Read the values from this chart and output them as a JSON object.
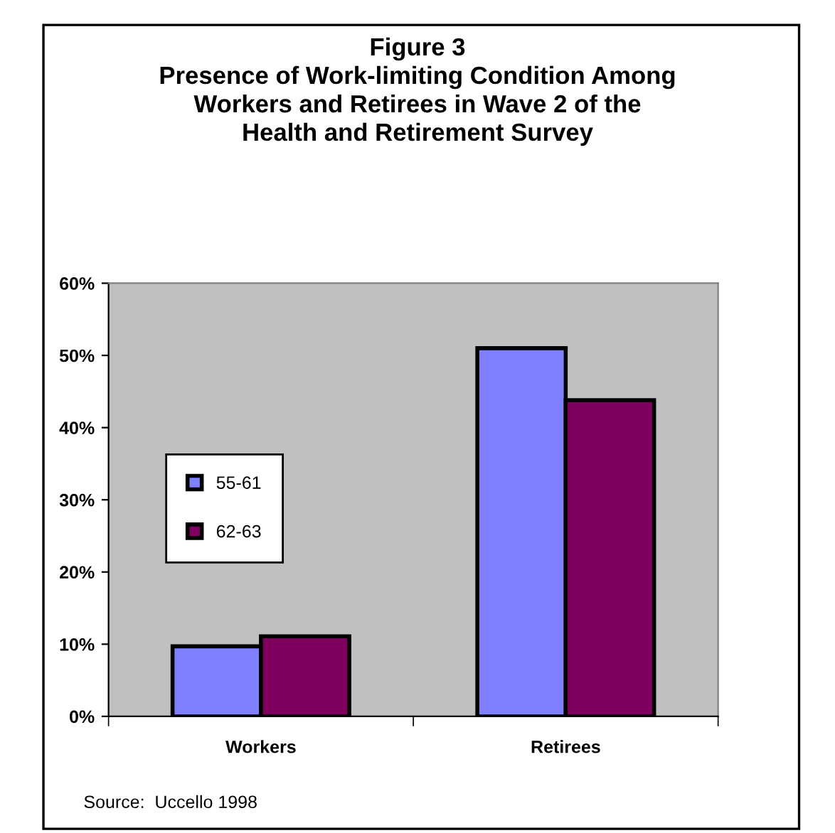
{
  "chart_data": {
    "type": "bar",
    "title": "Figure 3\nPresence of Work-limiting Condition Among\nWorkers and Retirees in Wave 2 of the\nHealth and Retirement Survey",
    "categories": [
      "Workers",
      "Retirees"
    ],
    "series": [
      {
        "name": "55-61",
        "color": "#8080ff",
        "values": [
          9.7,
          51
        ]
      },
      {
        "name": "62-63",
        "color": "#800060",
        "values": [
          11.1,
          43.8
        ]
      }
    ],
    "ylim": [
      0,
      60
    ],
    "yticks": [
      {
        "value": 0,
        "label": "0%"
      },
      {
        "value": 10,
        "label": "10%"
      },
      {
        "value": 20,
        "label": "20%"
      },
      {
        "value": 30,
        "label": "30%"
      },
      {
        "value": 40,
        "label": "40%"
      },
      {
        "value": 50,
        "label": "50%"
      },
      {
        "value": 60,
        "label": "60%"
      }
    ],
    "grid": false,
    "legend": "left",
    "annotations": [
      "Source:  Uccello 1998"
    ]
  }
}
